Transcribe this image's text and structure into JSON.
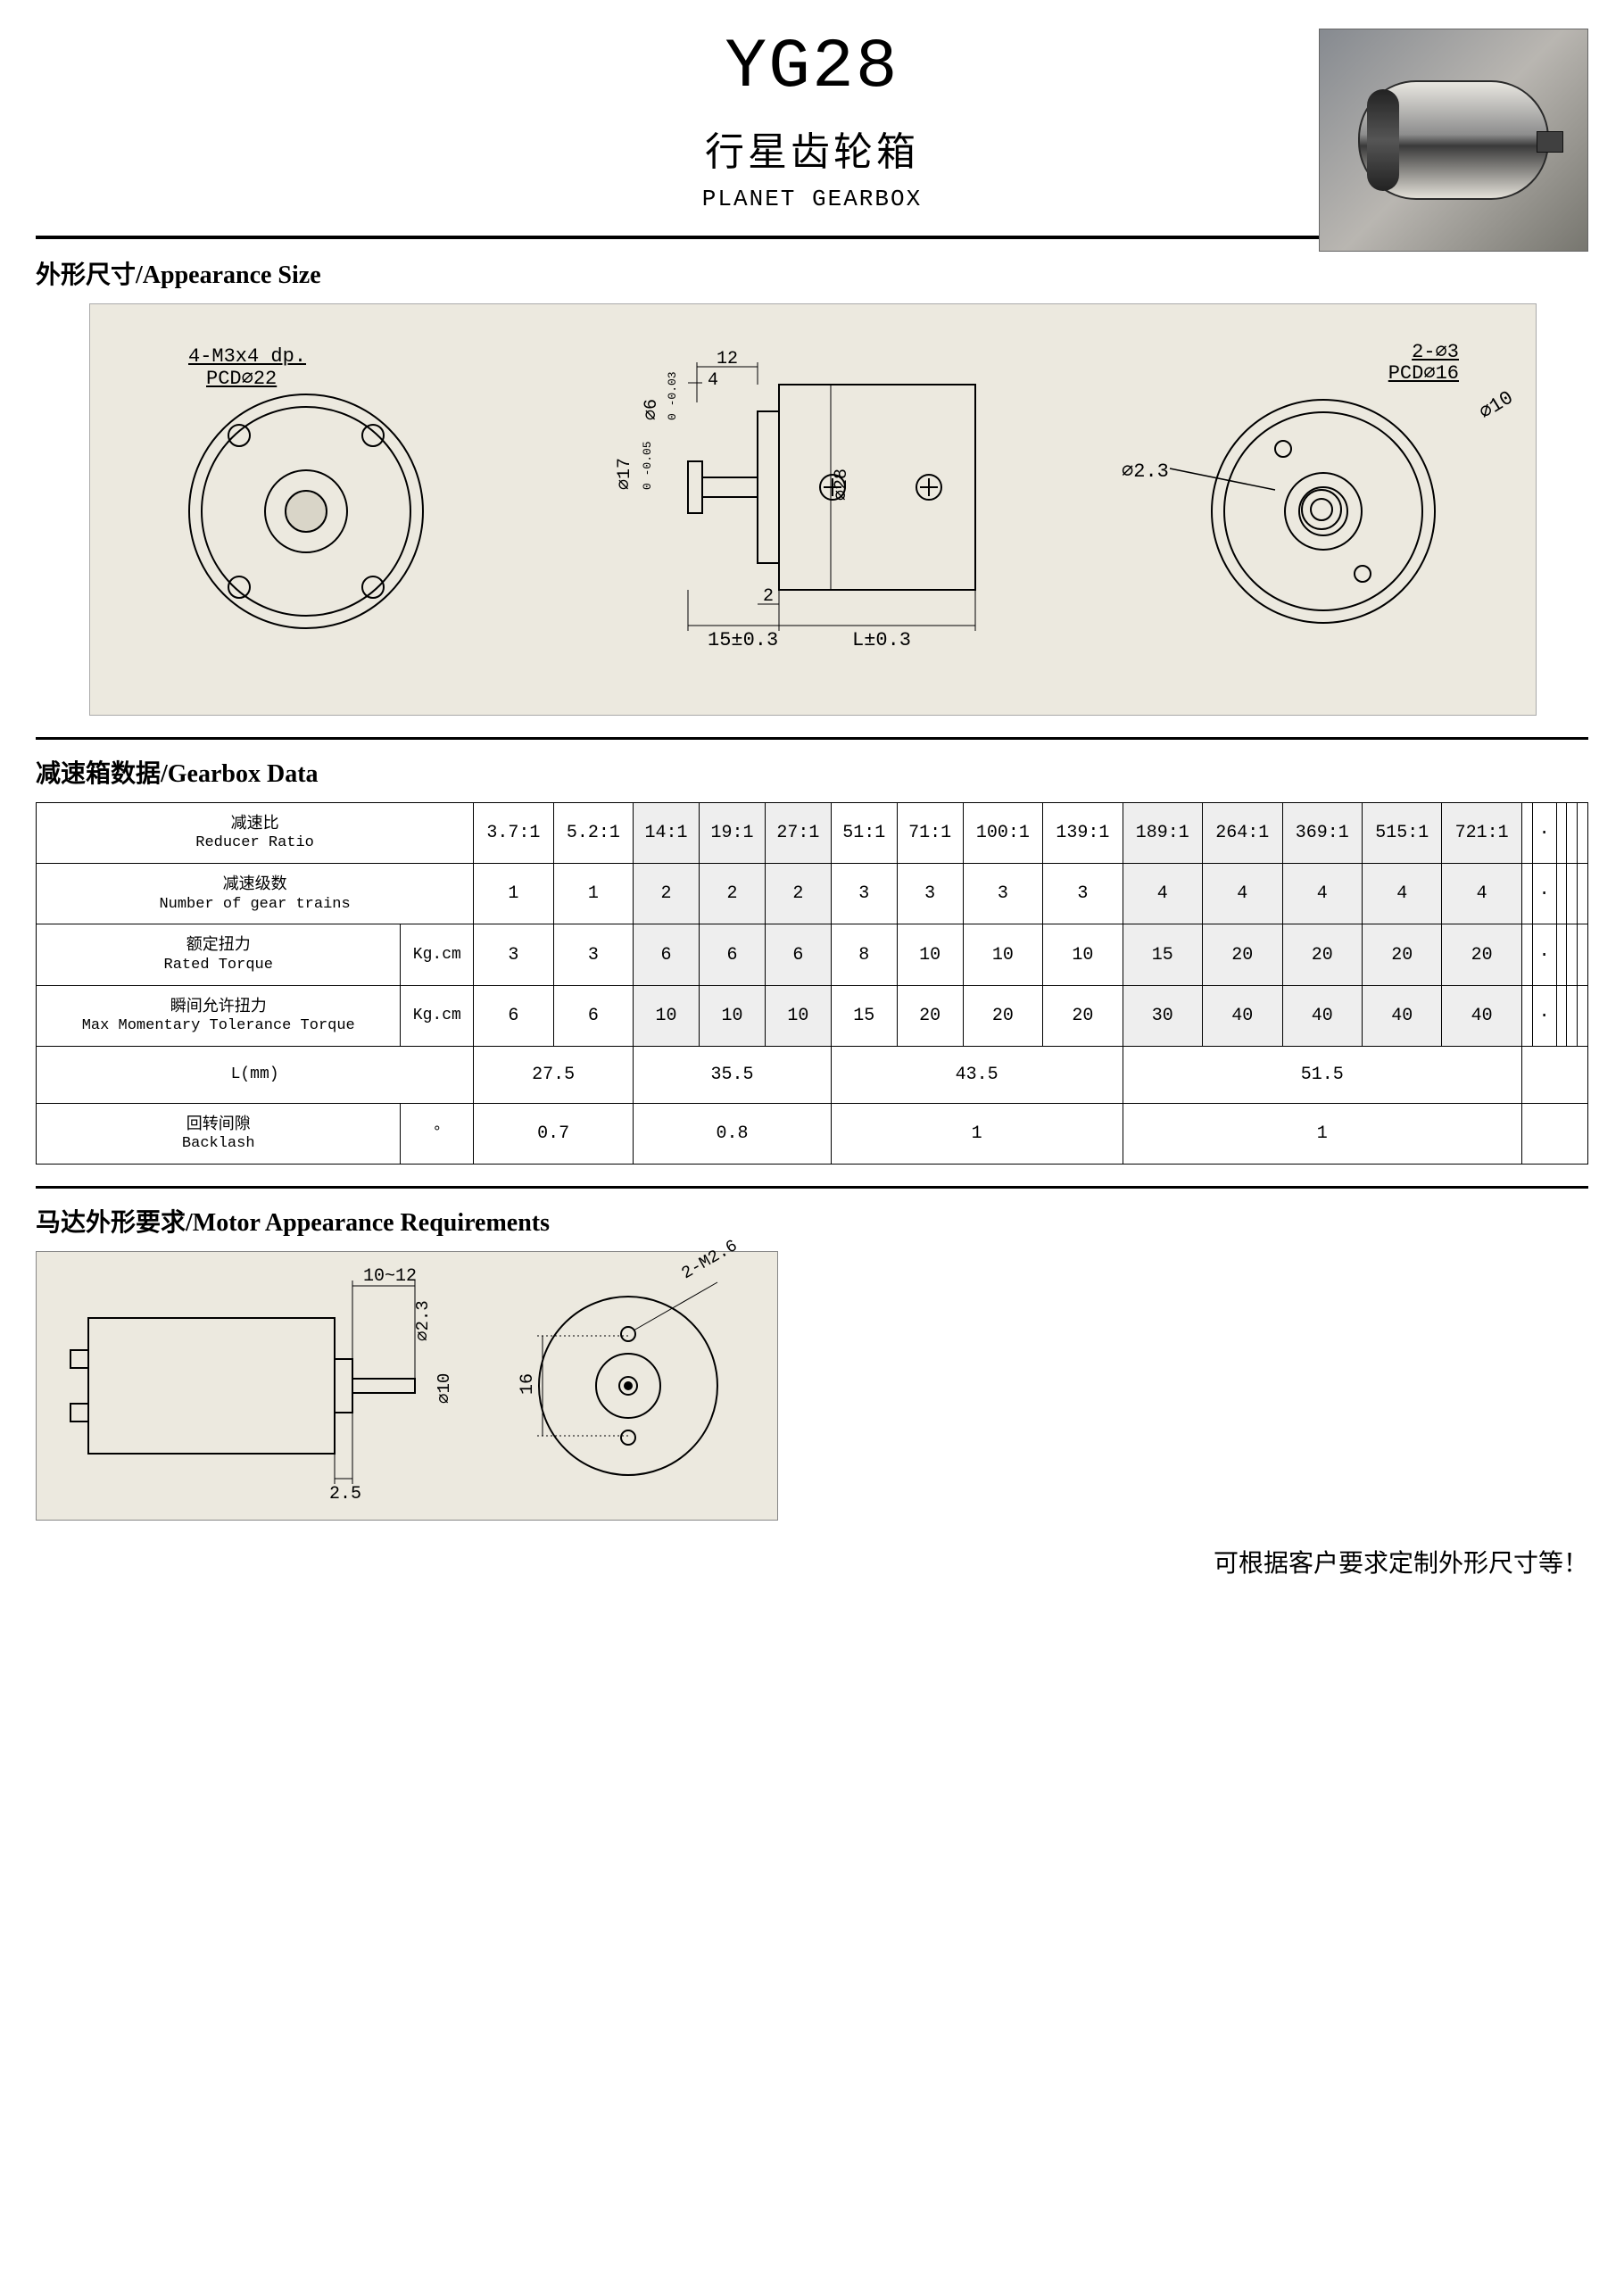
{
  "header": {
    "model": "YG28",
    "subtitle_cn": "行星齿轮箱",
    "subtitle_en": "PLANET GEARBOX"
  },
  "sections": {
    "appearance": "外形尺寸/Appearance Size",
    "gearbox_data": "减速箱数据/Gearbox Data",
    "motor_req": "马达外形要求/Motor Appearance Requirements"
  },
  "appearance_drawing": {
    "front_label_top": "4-M3x4 dp.",
    "front_label_bot": "PCD⌀22",
    "side_d6": "⌀6",
    "side_d6_tol_top": "0",
    "side_d6_tol_bot": "-0.03",
    "side_d17": "⌀17",
    "side_d17_tol_top": "0",
    "side_d17_tol_bot": "-0.05",
    "side_4": "4",
    "side_12": "12",
    "side_2": "2",
    "side_d28": "⌀28",
    "side_15": "15±0.3",
    "side_L": "L±0.3",
    "rear_top1": "2-⌀3",
    "rear_top2": "PCD⌀16",
    "rear_d23": "⌀2.3",
    "rear_d10": "⌀10"
  },
  "gearbox_table": {
    "row_labels": {
      "ratio_cn": "减速比",
      "ratio_en": "Reducer Ratio",
      "trains_cn": "减速级数",
      "trains_en": "Number of gear trains",
      "rated_cn": "额定扭力",
      "rated_en": "Rated Torque",
      "max_cn": "瞬间允许扭力",
      "max_en": "Max  Momentary Tolerance Torque",
      "length": "L(mm)",
      "backlash_cn": "回转间隙",
      "backlash_en": "Backlash",
      "kgcm": "Kg.cm",
      "deg": "°"
    },
    "ratios": [
      "3.7:1",
      "5.2:1",
      "14:1",
      "19:1",
      "27:1",
      "51:1",
      "71:1",
      "100:1",
      "139:1",
      "189:1",
      "264:1",
      "369:1",
      "515:1",
      "721:1"
    ],
    "trains": [
      "1",
      "1",
      "2",
      "2",
      "2",
      "3",
      "3",
      "3",
      "3",
      "4",
      "4",
      "4",
      "4",
      "4"
    ],
    "rated": [
      "3",
      "3",
      "6",
      "6",
      "6",
      "8",
      "10",
      "10",
      "10",
      "15",
      "20",
      "20",
      "20",
      "20"
    ],
    "max": [
      "6",
      "6",
      "10",
      "10",
      "10",
      "15",
      "20",
      "20",
      "20",
      "30",
      "40",
      "40",
      "40",
      "40"
    ],
    "shade_cols": [
      2,
      3,
      4,
      9,
      10,
      11,
      12,
      13
    ],
    "groups": [
      {
        "span": 2,
        "length": "27.5",
        "backlash": "0.7"
      },
      {
        "span": 3,
        "length": "35.5",
        "backlash": "0.8"
      },
      {
        "span": 4,
        "length": "43.5",
        "backlash": "1"
      },
      {
        "span": 5,
        "length": "51.5",
        "backlash": "1"
      }
    ],
    "blank_group_span": 5
  },
  "motor_drawing": {
    "top": "10~12",
    "d23": "⌀2.3",
    "d10": "⌀10",
    "bot": "2.5",
    "right_dim": "16",
    "right_top": "2-M2.6"
  },
  "footnote": "可根据客户要求定制外形尺寸等！",
  "style": {
    "bg_panel": "#ece9df",
    "shade": "#eeeeee",
    "font_mono": "Courier New"
  }
}
